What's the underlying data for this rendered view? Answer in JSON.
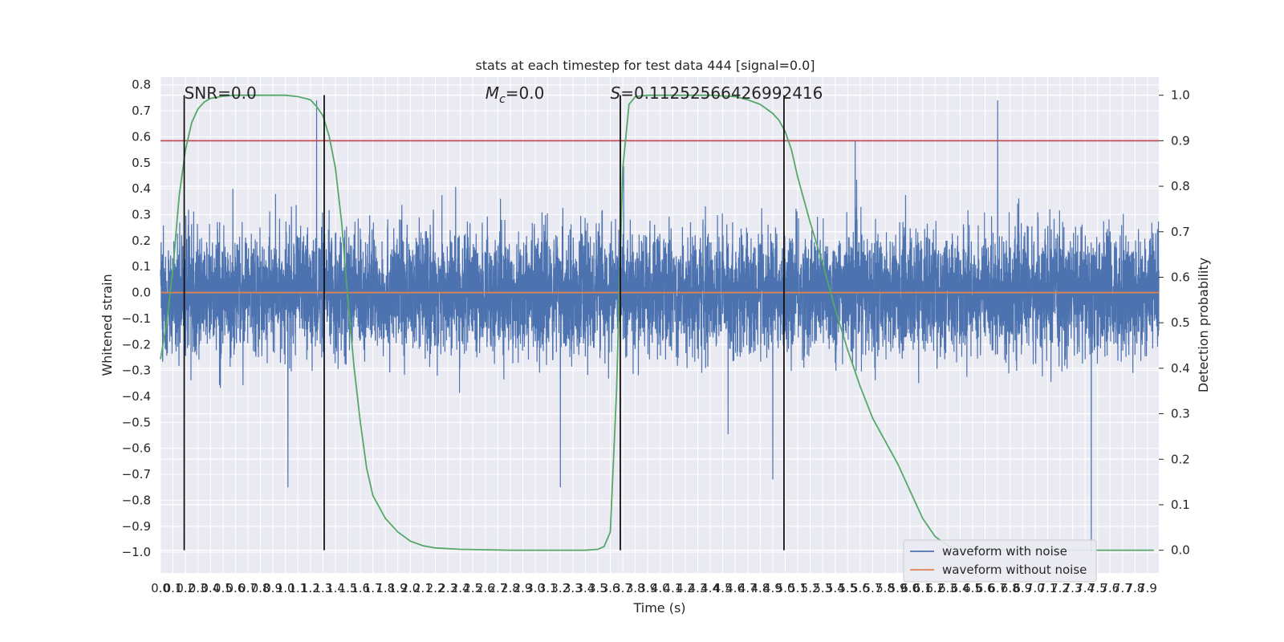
{
  "chart_data": {
    "type": "line",
    "title": "stats at each timestep for test data 444 [signal=0.0]",
    "xlabel": "Time (s)",
    "ylabel": "Whitened strain",
    "ylabel_right": "Detection probability",
    "xlim": [
      0.0,
      7.99
    ],
    "ylim": [
      -1.08,
      0.83
    ],
    "ylim_right": [
      -0.05,
      1.04
    ],
    "x_ticks": [
      "0.0",
      "0.1",
      "0.2",
      "0.3",
      "0.4",
      "0.5",
      "0.6",
      "0.7",
      "0.8",
      "0.9",
      "1.0",
      "1.1",
      "1.2",
      "1.3",
      "1.4",
      "1.5",
      "1.6",
      "1.7",
      "1.8",
      "1.9",
      "2.0",
      "2.1",
      "2.2",
      "2.3",
      "2.4",
      "2.5",
      "2.6",
      "2.7",
      "2.8",
      "2.9",
      "3.0",
      "3.1",
      "3.2",
      "3.3",
      "3.4",
      "3.5",
      "3.6",
      "3.7",
      "3.8",
      "3.9",
      "4.0",
      "4.1",
      "4.2",
      "4.3",
      "4.4",
      "4.5",
      "4.6",
      "4.7",
      "4.8",
      "4.9",
      "5.0",
      "5.1",
      "5.2",
      "5.3",
      "5.4",
      "5.5",
      "5.6",
      "5.7",
      "5.8",
      "5.9",
      "6.0",
      "6.1",
      "6.2",
      "6.3",
      "6.4",
      "6.5",
      "6.6",
      "6.7",
      "6.8",
      "6.9",
      "7.0",
      "7.1",
      "7.2",
      "7.3",
      "7.4",
      "7.5",
      "7.6",
      "7.7",
      "7.8",
      "7.9"
    ],
    "y_ticks": [
      "−1.0",
      "−0.9",
      "−0.8",
      "−0.7",
      "−0.6",
      "−0.5",
      "−0.4",
      "−0.3",
      "−0.2",
      "−0.1",
      "0.0",
      "0.1",
      "0.2",
      "0.3",
      "0.4",
      "0.5",
      "0.6",
      "0.7",
      "0.8"
    ],
    "y_ticks_right": [
      "0.0",
      "0.1",
      "0.2",
      "0.3",
      "0.4",
      "0.5",
      "0.6",
      "0.7",
      "0.8",
      "0.9",
      "1.0"
    ],
    "grid": true,
    "legend_position": "bottom-right",
    "series": [
      {
        "name": "waveform with noise",
        "color": "#4c72b0",
        "axis": "left",
        "description_noise_amplitude": 0.25,
        "peak_values": [
          {
            "x": 1.25,
            "y": 0.74
          },
          {
            "x": 4.9,
            "y": -0.72
          },
          {
            "x": 6.7,
            "y": 0.74
          },
          {
            "x": 7.45,
            "y": -1.0
          },
          {
            "x": 1.02,
            "y": -0.75
          },
          {
            "x": 3.2,
            "y": -0.75
          }
        ]
      },
      {
        "name": "waveform without noise",
        "color": "#dd8452",
        "axis": "left",
        "x": [
          0.0,
          7.99
        ],
        "y": [
          0.0,
          0.0
        ]
      },
      {
        "name": "",
        "color": "#55a868",
        "axis": "right",
        "x": [
          0.0,
          0.05,
          0.1,
          0.15,
          0.2,
          0.25,
          0.3,
          0.35,
          0.4,
          0.5,
          0.6,
          0.8,
          1.0,
          1.1,
          1.2,
          1.25,
          1.3,
          1.35,
          1.4,
          1.45,
          1.5,
          1.55,
          1.6,
          1.65,
          1.7,
          1.8,
          1.9,
          2.0,
          2.1,
          2.2,
          2.4,
          2.8,
          3.2,
          3.4,
          3.5,
          3.55,
          3.6,
          3.65,
          3.7,
          3.75,
          3.8,
          3.9,
          4.0,
          4.4,
          4.6,
          4.7,
          4.8,
          4.9,
          4.95,
          5.0,
          5.05,
          5.1,
          5.2,
          5.3,
          5.4,
          5.5,
          5.6,
          5.7,
          5.8,
          5.9,
          6.0,
          6.1,
          6.2,
          6.3,
          6.4,
          6.6,
          6.8,
          7.0,
          7.5,
          7.95
        ],
        "y": [
          0.42,
          0.5,
          0.62,
          0.78,
          0.88,
          0.94,
          0.97,
          0.985,
          0.993,
          0.998,
          1.0,
          1.0,
          1.0,
          0.997,
          0.99,
          0.975,
          0.955,
          0.91,
          0.84,
          0.72,
          0.55,
          0.4,
          0.28,
          0.18,
          0.12,
          0.07,
          0.04,
          0.02,
          0.01,
          0.005,
          0.002,
          0.0,
          0.0,
          0.0,
          0.002,
          0.008,
          0.04,
          0.35,
          0.84,
          0.98,
          0.997,
          1.0,
          1.0,
          1.0,
          0.997,
          0.99,
          0.98,
          0.96,
          0.945,
          0.92,
          0.88,
          0.82,
          0.72,
          0.63,
          0.53,
          0.44,
          0.36,
          0.29,
          0.24,
          0.19,
          0.13,
          0.07,
          0.03,
          0.01,
          0.002,
          0.0,
          0.0,
          0.0,
          0.0,
          0.0
        ]
      }
    ],
    "threshold_line": {
      "y_right": 0.9,
      "color": "#c44e52"
    },
    "vertical_markers_x": [
      0.19,
      1.31,
      3.68,
      4.99
    ],
    "annotations": [
      {
        "text": "SNR=0.0",
        "x": 0.19
      },
      {
        "text": "=0.0",
        "x": 2.6,
        "math_prefix": "M",
        "math_sub": "c"
      },
      {
        "text": "=0.11252566426992416",
        "x": 3.6,
        "math_prefix": "S"
      }
    ]
  }
}
